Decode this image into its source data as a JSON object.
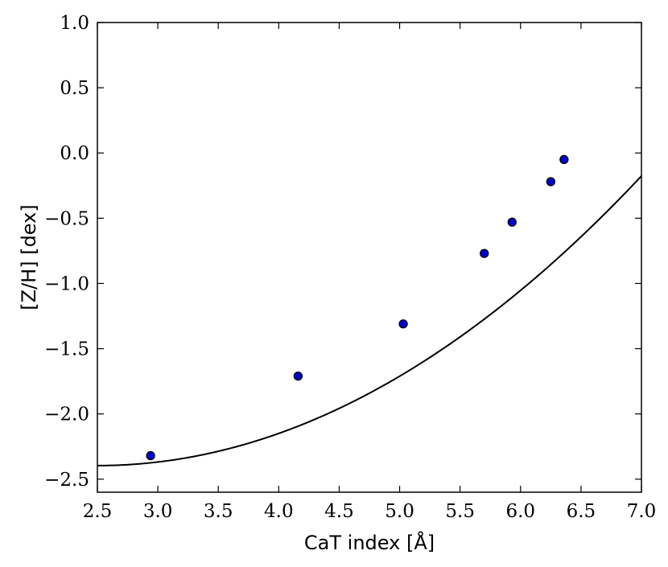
{
  "chart_data": {
    "type": "scatter",
    "title": "",
    "xlabel": "CaT index [Å]",
    "ylabel": "[Z/H] [dex]",
    "xlim": [
      2.5,
      7.0
    ],
    "ylim": [
      -2.6,
      1.0
    ],
    "xticks": [
      2.5,
      3.0,
      3.5,
      4.0,
      4.5,
      5.0,
      5.5,
      6.0,
      6.5,
      7.0
    ],
    "xtick_labels": [
      "2.5",
      "3.0",
      "3.5",
      "4.0",
      "4.5",
      "5.0",
      "5.5",
      "6.0",
      "6.5",
      "7.0"
    ],
    "yticks": [
      1.0,
      0.5,
      0.0,
      -0.5,
      -1.0,
      -1.5,
      -2.0,
      -2.5
    ],
    "ytick_labels": [
      "1.0",
      "0.5",
      "0.0",
      "−0.5",
      "−1.0",
      "−1.5",
      "−2.0",
      "−2.5"
    ],
    "grid": false,
    "series": [
      {
        "kind": "points",
        "color": "#0000cc",
        "x": [
          2.94,
          4.16,
          5.03,
          5.7,
          5.93,
          6.25,
          6.36
        ],
        "y": [
          -2.32,
          -1.71,
          -1.31,
          -0.77,
          -0.53,
          -0.22,
          -0.05
        ]
      },
      {
        "kind": "fit-curve",
        "color": "#000000",
        "model": "quadratic",
        "coefficients": [
          -2.396,
          0.0,
          0.1096
        ],
        "x_offset": 2.5,
        "x_range": [
          2.5,
          7.0
        ]
      }
    ]
  }
}
